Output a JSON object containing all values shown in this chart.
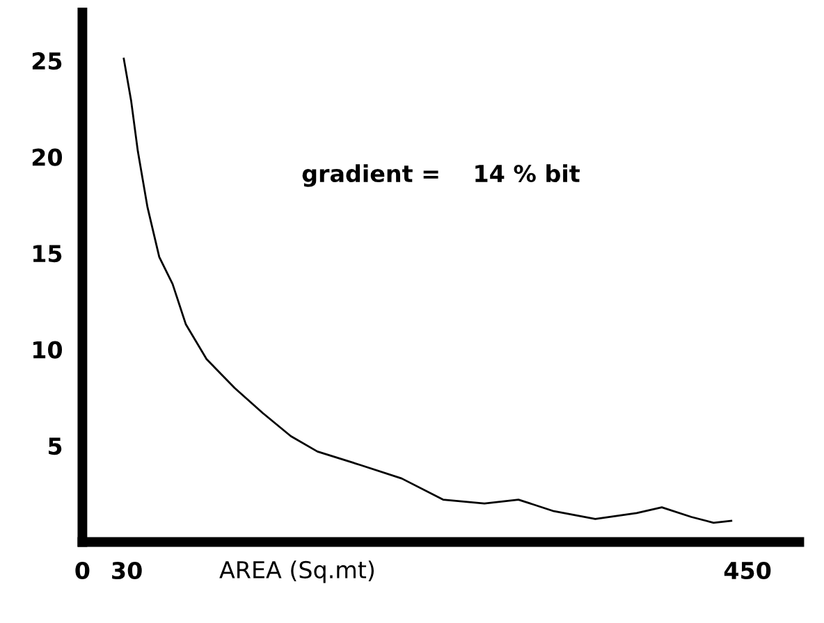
{
  "chart_data": {
    "type": "line",
    "xlabel": "AREA (Sq.mt)",
    "annotations": [
      "gradient =    14 % bit"
    ],
    "xlim": [
      0,
      485
    ],
    "ylim": [
      0,
      27.5
    ],
    "xticks": [
      0,
      30,
      450
    ],
    "yticks": [
      5,
      10,
      15,
      20,
      25
    ],
    "grid": false,
    "marker": "none",
    "line_style": "solid",
    "series": [
      {
        "color": "#000000",
        "x": [
          28,
          33,
          37.5,
          44,
          52,
          61,
          70,
          84,
          103,
          122,
          141,
          159,
          188,
          216,
          244,
          272,
          295,
          319,
          347,
          375,
          392,
          412,
          427,
          439
        ],
        "values": [
          25.1,
          22.9,
          20.3,
          17.4,
          14.8,
          13.4,
          11.3,
          9.5,
          8.0,
          6.7,
          5.5,
          4.7,
          4.0,
          3.3,
          2.2,
          2.0,
          2.2,
          1.6,
          1.2,
          1.5,
          1.8,
          1.3,
          1.0,
          1.1
        ]
      }
    ]
  }
}
